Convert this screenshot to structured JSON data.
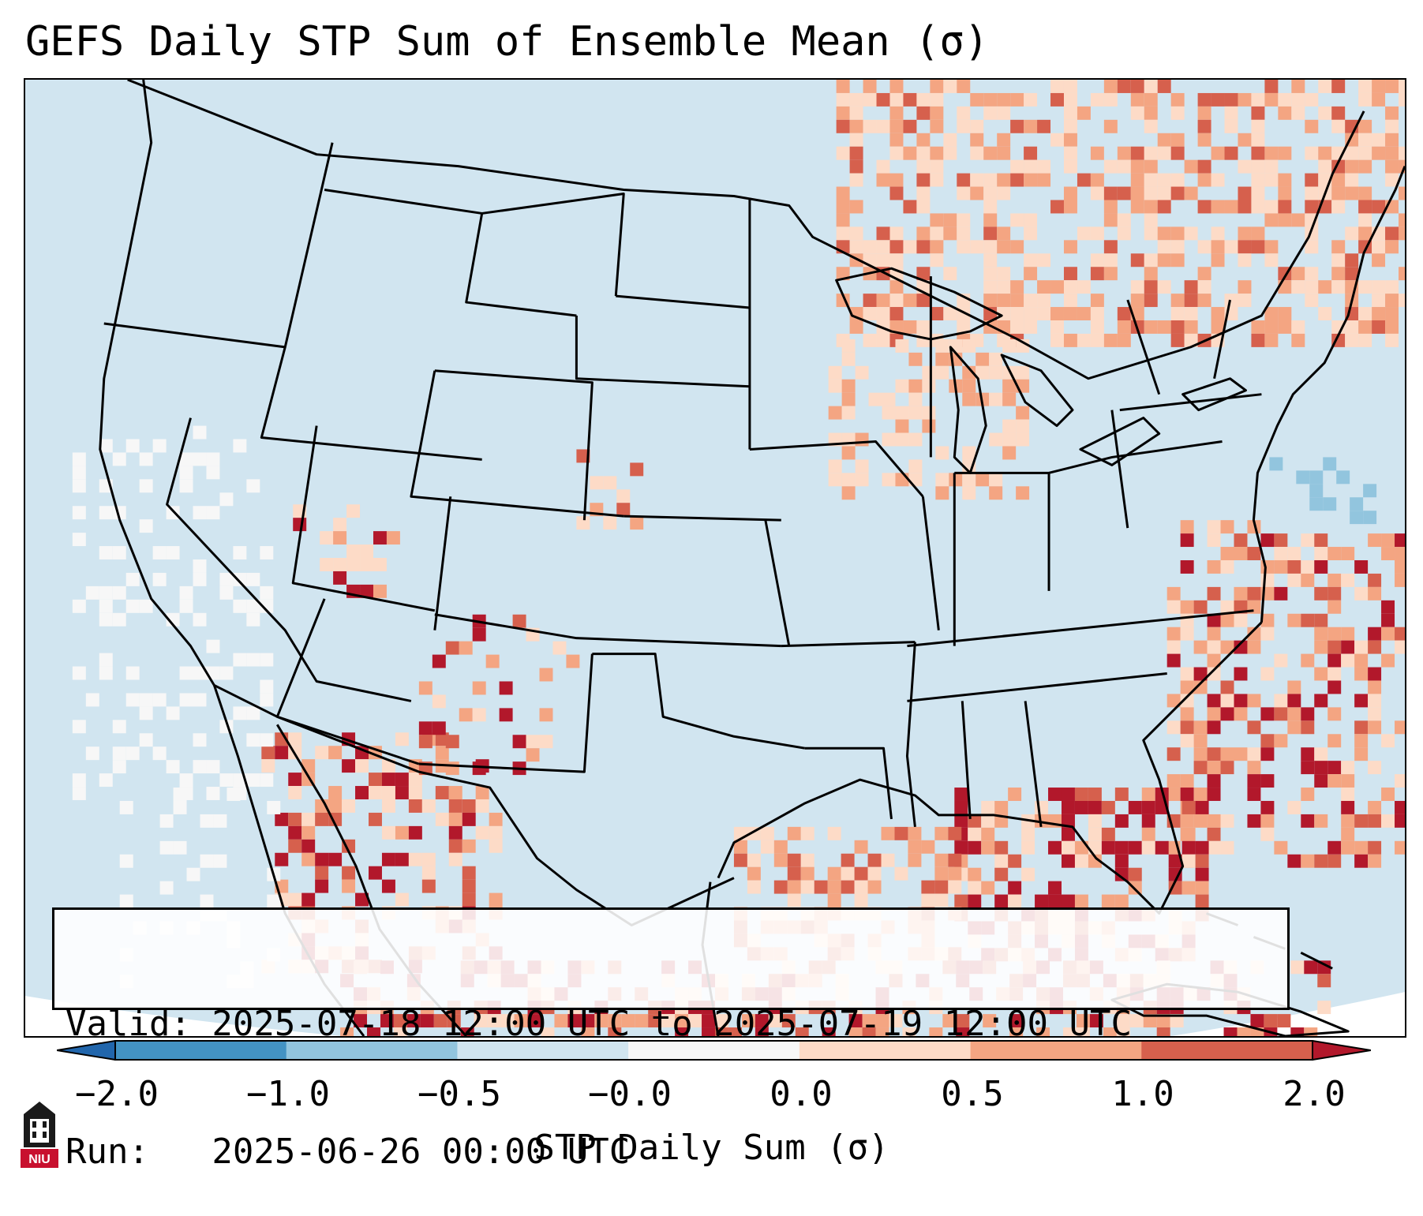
{
  "title": "GEFS Daily STP Sum of Ensemble Mean (σ)",
  "info": {
    "valid_line": "Valid: 2025-07-18 12:00 UTC to 2025-07-19 12:00 UTC",
    "run_line": "Run:   2025-06-26 00:00 UTC"
  },
  "colorbar": {
    "label": "STP Daily Sum (σ)",
    "tick_labels": [
      "−2.0",
      "−1.0",
      "−0.5",
      "−0.0",
      "0.0",
      "0.5",
      "1.0",
      "2.0"
    ],
    "bins": [
      {
        "range": "< -2.0",
        "color": "#2166ac"
      },
      {
        "range": "-2.0 to -1.0",
        "color": "#4393c3"
      },
      {
        "range": "-1.0 to -0.5",
        "color": "#92c5de"
      },
      {
        "range": "-0.5 to -0.0",
        "color": "#d1e5f0"
      },
      {
        "range": "-0.0 to 0.0",
        "color": "#f7f7f7"
      },
      {
        "range": "0.0 to 0.5",
        "color": "#fddbc7"
      },
      {
        "range": "0.5 to 1.0",
        "color": "#f4a582"
      },
      {
        "range": "1.0 to 2.0",
        "color": "#d6604d"
      },
      {
        "range": "> 2.0",
        "color": "#b2182b"
      }
    ]
  },
  "map": {
    "projection": "Lambert Conformal, CONUS",
    "background_color": "#d1e5f0",
    "outline_color": "#000000"
  },
  "logo": {
    "text": "NIU"
  }
}
